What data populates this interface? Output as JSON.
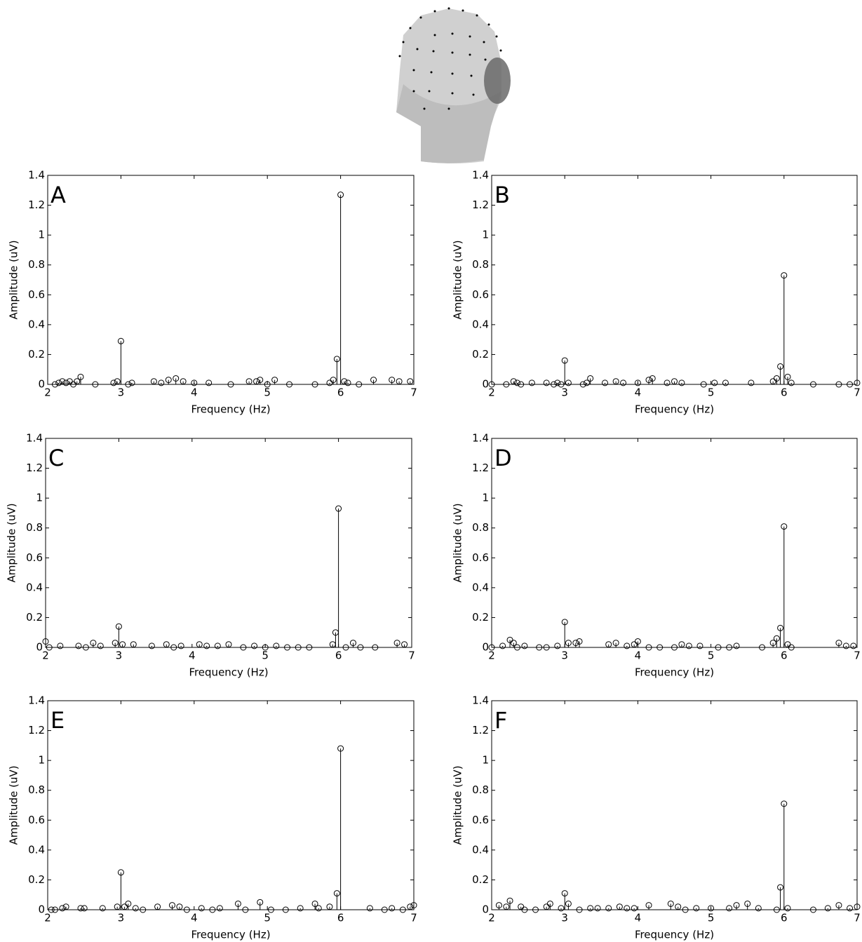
{
  "chart_data": [
    {
      "type": "stem",
      "panel_label": "A",
      "xlabel": "Frequency (Hz)",
      "ylabel": "Amplitude (uV)",
      "color": "#000000",
      "x": [
        2.1,
        2.15,
        2.2,
        2.25,
        2.3,
        2.35,
        2.4,
        2.45,
        2.65,
        2.9,
        2.95,
        3,
        3.1,
        3.15,
        3.45,
        3.55,
        3.65,
        3.75,
        3.85,
        4,
        4.2,
        4.5,
        4.75,
        4.85,
        4.9,
        5,
        5.1,
        5.3,
        5.65,
        5.85,
        5.9,
        5.95,
        6,
        6.05,
        6.1,
        6.25,
        6.45,
        6.7,
        6.8,
        6.95
      ],
      "values": [
        0,
        0.01,
        0.02,
        0.01,
        0.02,
        0,
        0.02,
        0.05,
        0,
        0.01,
        0.02,
        0.29,
        0,
        0.01,
        0.02,
        0.01,
        0.03,
        0.04,
        0.02,
        0.01,
        0.01,
        0,
        0.02,
        0.02,
        0.03,
        0,
        0.03,
        0,
        0,
        0.01,
        0.03,
        0.17,
        1.27,
        0.02,
        0.01,
        0,
        0.03,
        0.03,
        0.02,
        0.02
      ],
      "xlim": [
        2,
        7
      ],
      "ylim": [
        0,
        1.4
      ],
      "xticks": [
        2,
        3,
        4,
        5,
        6,
        7
      ],
      "yticks": [
        0,
        0.2,
        0.4,
        0.6,
        0.8,
        1,
        1.2,
        1.4
      ]
    },
    {
      "type": "stem",
      "panel_label": "B",
      "xlabel": "Frequency (Hz)",
      "ylabel": "Amplitude (uV)",
      "color": "#000000",
      "x": [
        2,
        2.2,
        2.3,
        2.35,
        2.4,
        2.55,
        2.75,
        2.85,
        2.9,
        2.95,
        3,
        3.05,
        3.25,
        3.3,
        3.35,
        3.55,
        3.7,
        3.8,
        4,
        4.15,
        4.2,
        4.4,
        4.5,
        4.6,
        4.9,
        5.05,
        5.2,
        5.55,
        5.85,
        5.9,
        5.95,
        6,
        6.05,
        6.1,
        6.4,
        6.75,
        6.9,
        7
      ],
      "values": [
        0,
        0,
        0.02,
        0.01,
        0,
        0.01,
        0.01,
        0,
        0.01,
        0,
        0.16,
        0.01,
        0,
        0.01,
        0.04,
        0.01,
        0.02,
        0.01,
        0.01,
        0.03,
        0.04,
        0.01,
        0.02,
        0.01,
        0,
        0.01,
        0.01,
        0.01,
        0.02,
        0.04,
        0.12,
        0.73,
        0.05,
        0.01,
        0,
        0,
        0,
        0.01
      ],
      "xlim": [
        2,
        7
      ],
      "ylim": [
        0,
        1.4
      ],
      "xticks": [
        2,
        3,
        4,
        5,
        6,
        7
      ],
      "yticks": [
        0,
        0.2,
        0.4,
        0.6,
        0.8,
        1,
        1.2,
        1.4
      ]
    },
    {
      "type": "stem",
      "panel_label": "C",
      "xlabel": "Frequency (Hz)",
      "ylabel": "Amplitude (uV)",
      "color": "#000000",
      "x": [
        2,
        2.05,
        2.2,
        2.45,
        2.55,
        2.65,
        2.75,
        2.95,
        3,
        3.05,
        3.2,
        3.45,
        3.65,
        3.75,
        3.85,
        4.1,
        4.2,
        4.35,
        4.5,
        4.7,
        4.85,
        5,
        5.15,
        5.3,
        5.45,
        5.6,
        5.92,
        5.96,
        6,
        6.1,
        6.2,
        6.3,
        6.5,
        6.8,
        6.9
      ],
      "values": [
        0.04,
        0,
        0.01,
        0.01,
        0,
        0.03,
        0.01,
        0.03,
        0.14,
        0.02,
        0.02,
        0.01,
        0.02,
        0,
        0.01,
        0.02,
        0.01,
        0.01,
        0.02,
        0,
        0.01,
        0,
        0.01,
        0,
        0,
        0,
        0.02,
        0.1,
        0.93,
        0,
        0.03,
        0,
        0,
        0.03,
        0.02
      ],
      "xlim": [
        2,
        7
      ],
      "ylim": [
        0,
        1.4
      ],
      "xticks": [
        2,
        3,
        4,
        5,
        6,
        7
      ],
      "yticks": [
        0,
        0.2,
        0.4,
        0.6,
        0.8,
        1,
        1.2,
        1.4
      ]
    },
    {
      "type": "stem",
      "panel_label": "D",
      "xlabel": "Frequency (Hz)",
      "ylabel": "Amplitude (uV)",
      "color": "#000000",
      "x": [
        2,
        2.15,
        2.25,
        2.3,
        2.35,
        2.45,
        2.65,
        2.75,
        2.9,
        3,
        3.05,
        3.15,
        3.2,
        3.6,
        3.7,
        3.85,
        3.95,
        4,
        4.15,
        4.3,
        4.5,
        4.6,
        4.7,
        4.85,
        5.1,
        5.25,
        5.35,
        5.7,
        5.85,
        5.9,
        5.95,
        6,
        6.05,
        6.1,
        6.75,
        6.85,
        6.95
      ],
      "values": [
        0,
        0.01,
        0.05,
        0.03,
        0,
        0.01,
        0,
        0,
        0.01,
        0.17,
        0.03,
        0.03,
        0.04,
        0.02,
        0.03,
        0.01,
        0.02,
        0.04,
        0,
        0,
        0,
        0.02,
        0.01,
        0.01,
        0,
        0,
        0.01,
        0,
        0.03,
        0.06,
        0.13,
        0.81,
        0.02,
        0,
        0.03,
        0.01,
        0.01
      ],
      "xlim": [
        2,
        7
      ],
      "ylim": [
        0,
        1.4
      ],
      "xticks": [
        2,
        3,
        4,
        5,
        6,
        7
      ],
      "yticks": [
        0,
        0.2,
        0.4,
        0.6,
        0.8,
        1,
        1.2,
        1.4
      ]
    },
    {
      "type": "stem",
      "panel_label": "E",
      "xlabel": "Frequency (Hz)",
      "ylabel": "Amplitude (uV)",
      "color": "#000000",
      "x": [
        2.05,
        2.1,
        2.2,
        2.25,
        2.45,
        2.5,
        2.75,
        2.95,
        3,
        3.05,
        3.1,
        3.2,
        3.3,
        3.5,
        3.7,
        3.8,
        3.9,
        4.1,
        4.25,
        4.35,
        4.6,
        4.7,
        4.9,
        5.05,
        5.25,
        5.45,
        5.65,
        5.7,
        5.85,
        5.95,
        6,
        6.4,
        6.6,
        6.7,
        6.85,
        6.95,
        7
      ],
      "values": [
        0,
        0,
        0.01,
        0.02,
        0.01,
        0.01,
        0.01,
        0.02,
        0.25,
        0.02,
        0.04,
        0.01,
        0,
        0.02,
        0.03,
        0.02,
        0,
        0.01,
        0,
        0.01,
        0.04,
        0,
        0.05,
        0,
        0,
        0.01,
        0.04,
        0.01,
        0.02,
        0.11,
        1.08,
        0.01,
        0,
        0.01,
        0,
        0.02,
        0.03
      ],
      "xlim": [
        2,
        7
      ],
      "ylim": [
        0,
        1.4
      ],
      "xticks": [
        2,
        3,
        4,
        5,
        6,
        7
      ],
      "yticks": [
        0,
        0.2,
        0.4,
        0.6,
        0.8,
        1,
        1.2,
        1.4
      ]
    },
    {
      "type": "stem",
      "panel_label": "F",
      "xlabel": "Frequency (Hz)",
      "ylabel": "Amplitude (uV)",
      "color": "#000000",
      "x": [
        2.1,
        2.2,
        2.25,
        2.4,
        2.45,
        2.6,
        2.75,
        2.8,
        2.95,
        3,
        3.05,
        3.2,
        3.35,
        3.45,
        3.6,
        3.75,
        3.85,
        3.95,
        4.15,
        4.45,
        4.55,
        4.65,
        4.8,
        5,
        5.25,
        5.35,
        5.5,
        5.65,
        5.9,
        5.95,
        6,
        6.05,
        6.4,
        6.6,
        6.75,
        6.9,
        7
      ],
      "values": [
        0.03,
        0.02,
        0.06,
        0.02,
        0,
        0,
        0.02,
        0.04,
        0.01,
        0.11,
        0.04,
        0,
        0.01,
        0.01,
        0.01,
        0.02,
        0.01,
        0.01,
        0.03,
        0.04,
        0.02,
        0,
        0.01,
        0.01,
        0.01,
        0.03,
        0.04,
        0.01,
        0,
        0.15,
        0.71,
        0.01,
        0,
        0.01,
        0.03,
        0.01,
        0.02
      ],
      "xlim": [
        2,
        7
      ],
      "ylim": [
        0,
        1.4
      ],
      "xticks": [
        2,
        3,
        4,
        5,
        6,
        7
      ],
      "yticks": [
        0,
        0.2,
        0.4,
        0.6,
        0.8,
        1,
        1.2,
        1.4
      ]
    }
  ]
}
